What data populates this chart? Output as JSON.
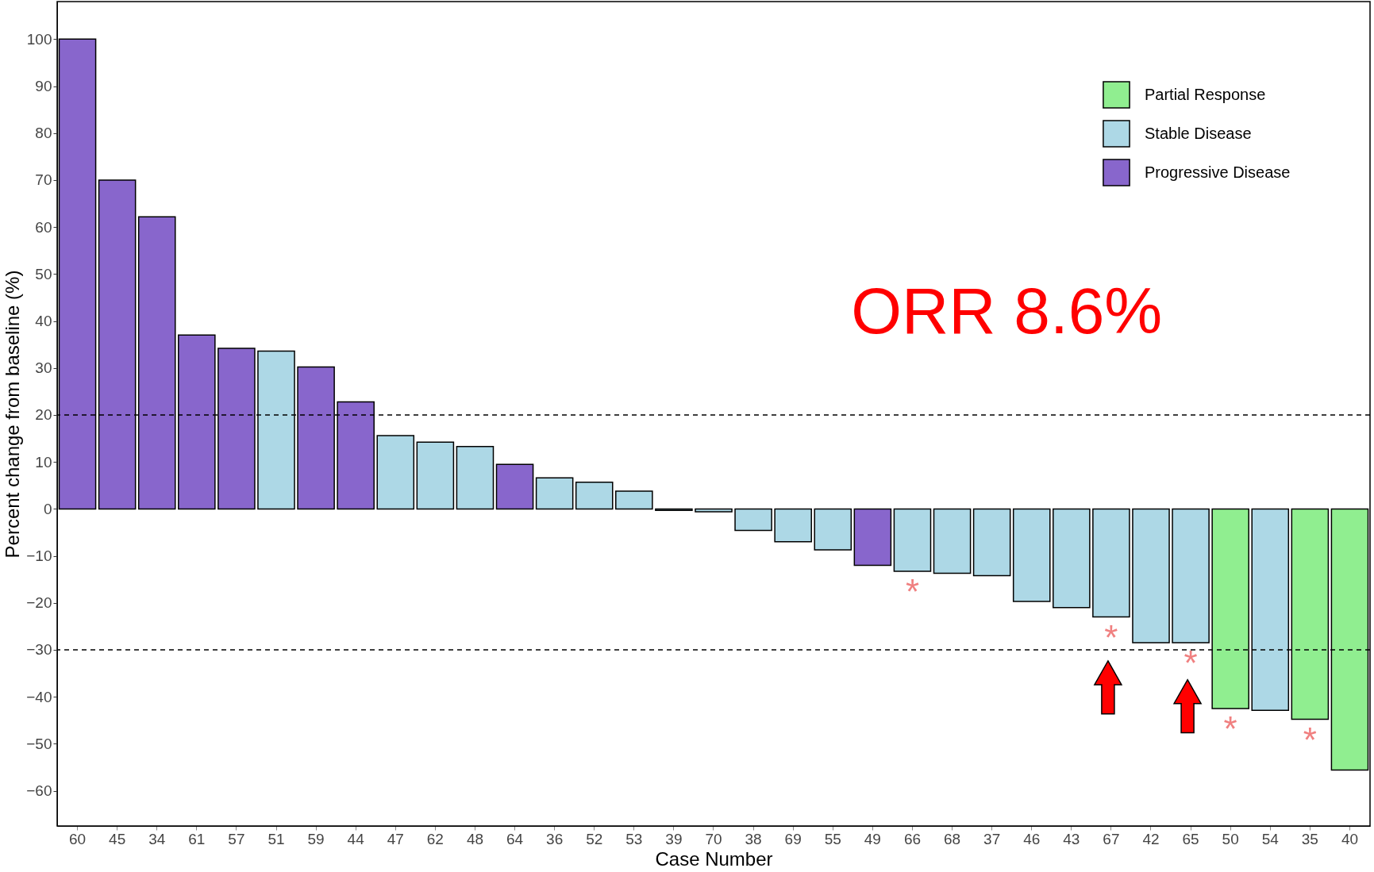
{
  "chart_data": {
    "type": "bar",
    "xlabel": "Case Number",
    "ylabel": "Percent change from baseline (%)",
    "categories": [
      "60",
      "45",
      "34",
      "61",
      "57",
      "51",
      "59",
      "44",
      "47",
      "62",
      "48",
      "64",
      "36",
      "52",
      "53",
      "39",
      "70",
      "38",
      "69",
      "55",
      "49",
      "66",
      "68",
      "37",
      "46",
      "43",
      "67",
      "42",
      "65",
      "50",
      "54",
      "35",
      "40"
    ],
    "series": [
      {
        "name": "Partial Response",
        "color": "#90ee90",
        "values": [
          null,
          null,
          null,
          null,
          null,
          null,
          null,
          null,
          null,
          null,
          null,
          null,
          null,
          null,
          null,
          null,
          null,
          null,
          null,
          null,
          null,
          null,
          null,
          null,
          null,
          null,
          null,
          null,
          null,
          -42.5,
          null,
          -44.8,
          -55.6
        ]
      },
      {
        "name": "Stable Disease",
        "color": "#add8e6",
        "values": [
          null,
          null,
          null,
          null,
          null,
          33.6,
          null,
          null,
          15.6,
          14.2,
          13.3,
          null,
          6.6,
          5.7,
          3.8,
          -0.3,
          -0.6,
          -4.6,
          -7,
          -8.7,
          null,
          -13.3,
          -13.7,
          -14.2,
          -19.7,
          -21,
          -23,
          -28.5,
          -28.5,
          null,
          -42.9,
          null,
          null
        ]
      },
      {
        "name": "Progressive Disease",
        "color": "#8866cc",
        "values": [
          100,
          70,
          62.2,
          37,
          34.2,
          null,
          30.2,
          22.8,
          null,
          null,
          null,
          9.5,
          null,
          null,
          null,
          null,
          null,
          null,
          null,
          null,
          -12,
          null,
          null,
          null,
          null,
          null,
          null,
          null,
          null,
          null,
          null,
          null,
          null
        ]
      }
    ],
    "ylim": [
      -67.5,
      108
    ],
    "yticks": [
      -60,
      -50,
      -40,
      -30,
      -20,
      -10,
      0,
      10,
      20,
      30,
      40,
      50,
      60,
      70,
      80,
      90,
      100
    ],
    "grid": false,
    "legend": "top right",
    "ref_lines": [
      {
        "axis": "y",
        "value": 20,
        "line_style": "dashed"
      },
      {
        "axis": "y",
        "value": -30,
        "line_style": "dashed"
      }
    ],
    "annotations": [
      "ORR 8.6%",
      {
        "text": "*",
        "x": "66",
        "y": -13.3
      },
      {
        "text": "*",
        "x": "67",
        "y": -23
      },
      {
        "text": "*",
        "x": "65",
        "y": -28.5
      },
      {
        "text": "*",
        "x": "50",
        "y": -42.5
      },
      {
        "text": "*",
        "x": "35",
        "y": -44.8
      }
    ]
  }
}
